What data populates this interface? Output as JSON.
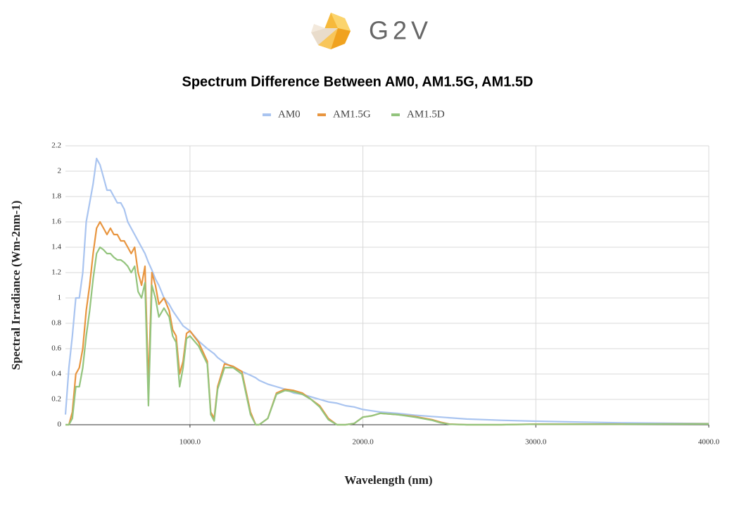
{
  "logo": "G2V",
  "chart_data": {
    "type": "line",
    "title": "Spectrum Difference Between AM0, AM1.5G, AM1.5D",
    "x_label": "Wavelength (nm)",
    "y_label": "Spectral Irradiance (Wm-2nm-1)",
    "x": [
      280,
      300,
      320,
      340,
      360,
      380,
      400,
      420,
      440,
      460,
      480,
      500,
      520,
      540,
      560,
      580,
      600,
      620,
      640,
      660,
      680,
      700,
      720,
      740,
      760,
      780,
      800,
      820,
      850,
      880,
      900,
      920,
      940,
      960,
      980,
      1000,
      1050,
      1100,
      1120,
      1140,
      1160,
      1200,
      1250,
      1300,
      1350,
      1380,
      1400,
      1450,
      1500,
      1550,
      1600,
      1650,
      1700,
      1750,
      1800,
      1850,
      1900,
      1950,
      2000,
      2050,
      2100,
      2200,
      2300,
      2400,
      2450,
      2500,
      2600,
      2800,
      3000,
      3200,
      3500,
      4000
    ],
    "series": [
      {
        "name": "AM0",
        "color": "#a9c4f0",
        "values": [
          0.08,
          0.45,
          0.7,
          1.0,
          1.0,
          1.2,
          1.6,
          1.75,
          1.9,
          2.1,
          2.05,
          1.95,
          1.85,
          1.85,
          1.8,
          1.75,
          1.75,
          1.7,
          1.6,
          1.55,
          1.5,
          1.45,
          1.4,
          1.35,
          1.28,
          1.22,
          1.15,
          1.1,
          1.0,
          0.95,
          0.9,
          0.86,
          0.82,
          0.78,
          0.76,
          0.74,
          0.66,
          0.6,
          0.58,
          0.56,
          0.53,
          0.49,
          0.45,
          0.42,
          0.39,
          0.37,
          0.35,
          0.32,
          0.3,
          0.28,
          0.25,
          0.24,
          0.22,
          0.2,
          0.18,
          0.17,
          0.15,
          0.14,
          0.12,
          0.11,
          0.1,
          0.09,
          0.075,
          0.065,
          0.06,
          0.055,
          0.045,
          0.035,
          0.028,
          0.022,
          0.015,
          0.009
        ]
      },
      {
        "name": "AM1.5G",
        "color": "#e8953f",
        "values": [
          0,
          0,
          0.1,
          0.4,
          0.45,
          0.6,
          0.9,
          1.1,
          1.35,
          1.55,
          1.6,
          1.55,
          1.5,
          1.55,
          1.5,
          1.5,
          1.45,
          1.45,
          1.4,
          1.35,
          1.4,
          1.2,
          1.1,
          1.25,
          0.3,
          1.2,
          1.1,
          0.95,
          1.0,
          0.9,
          0.75,
          0.7,
          0.4,
          0.5,
          0.72,
          0.74,
          0.65,
          0.5,
          0.1,
          0.05,
          0.3,
          0.48,
          0.46,
          0.42,
          0.1,
          0,
          0,
          0.05,
          0.25,
          0.28,
          0.27,
          0.25,
          0.2,
          0.15,
          0.05,
          0,
          0,
          0.01,
          0.06,
          0.07,
          0.09,
          0.08,
          0.065,
          0.04,
          0.02,
          0.005,
          0,
          0,
          0.005,
          0.005,
          0.005,
          0.007
        ]
      },
      {
        "name": "AM1.5D",
        "color": "#93c47d",
        "values": [
          0,
          0,
          0.05,
          0.3,
          0.3,
          0.45,
          0.7,
          0.9,
          1.15,
          1.35,
          1.4,
          1.38,
          1.35,
          1.35,
          1.32,
          1.3,
          1.3,
          1.28,
          1.25,
          1.2,
          1.25,
          1.05,
          1.0,
          1.12,
          0.15,
          1.1,
          1.0,
          0.85,
          0.92,
          0.85,
          0.7,
          0.65,
          0.3,
          0.45,
          0.68,
          0.7,
          0.62,
          0.48,
          0.08,
          0.03,
          0.28,
          0.45,
          0.45,
          0.4,
          0.08,
          0,
          0,
          0.05,
          0.24,
          0.27,
          0.26,
          0.24,
          0.2,
          0.14,
          0.04,
          0,
          0,
          0.01,
          0.06,
          0.07,
          0.09,
          0.08,
          0.06,
          0.035,
          0.015,
          0.004,
          0,
          0,
          0.004,
          0.004,
          0.004,
          0.006
        ]
      }
    ],
    "xlim": [
      280,
      4000
    ],
    "ylim": [
      0,
      2.2
    ],
    "xticks": [
      {
        "value": 1000,
        "label": "1000.0"
      },
      {
        "value": 2000,
        "label": "2000.0"
      },
      {
        "value": 3000,
        "label": "3000.0"
      },
      {
        "value": 4000,
        "label": "4000.0"
      }
    ],
    "yticks": [
      0,
      0.2,
      0.4,
      0.6,
      0.8,
      1,
      1.2,
      1.4,
      1.6,
      1.8,
      2,
      2.2
    ],
    "grid": true,
    "legend": "top"
  }
}
